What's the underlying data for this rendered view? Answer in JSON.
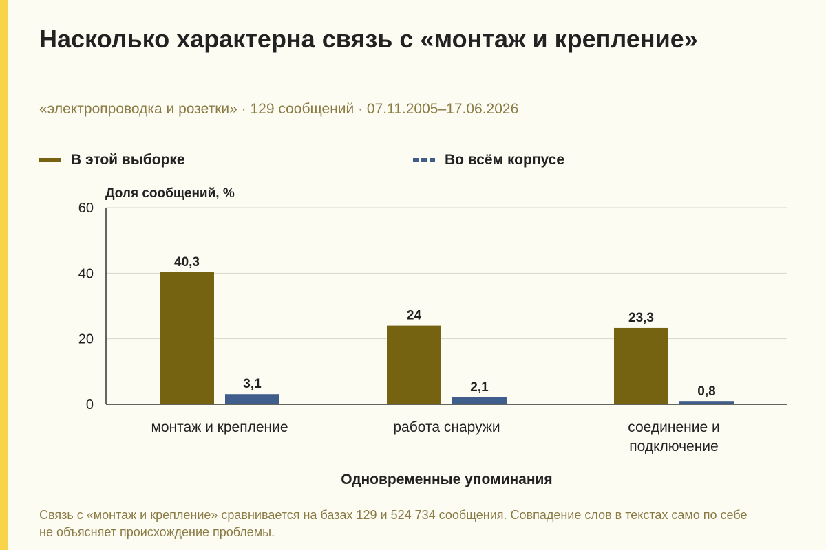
{
  "title": "Насколько характерна связь с «монтаж и крепление»",
  "subtitle": "«электропроводка и розетки» · 129 сообщений · 07.11.2005–17.06.2026",
  "legend": {
    "sample_label": "В этой выборке",
    "corpus_label": "Во всём корпусе"
  },
  "note": "Связь с «монтаж и крепление» сравнивается на базах 129 и 524 734 сообщения. Совпадение слов в текстах само по себе не объясняет происхождение проблемы.",
  "colors": {
    "accent_bar": "#f7d44a",
    "sample": "#756311",
    "corpus": "#3f5e8c",
    "background": "#fdfcf3"
  },
  "chart_data": {
    "type": "bar",
    "ylabel": "Доля сообщений, %",
    "xlabel": "Одновременные упоминания",
    "ylim": [
      0,
      60
    ],
    "yticks": [
      "0",
      "20",
      "40",
      "60"
    ],
    "grid": true,
    "legend_position": "top",
    "categories": [
      [
        "монтаж и крепление"
      ],
      [
        "работа снаружи"
      ],
      [
        "соединение и",
        "подключение"
      ]
    ],
    "series": [
      {
        "name": "В этой выборке",
        "values": [
          40.3,
          24,
          23.3
        ],
        "labels": [
          "40,3",
          "24",
          "23,3"
        ]
      },
      {
        "name": "Во всём корпусе",
        "values": [
          3.1,
          2.1,
          0.8
        ],
        "labels": [
          "3,1",
          "2,1",
          "0,8"
        ]
      }
    ]
  }
}
